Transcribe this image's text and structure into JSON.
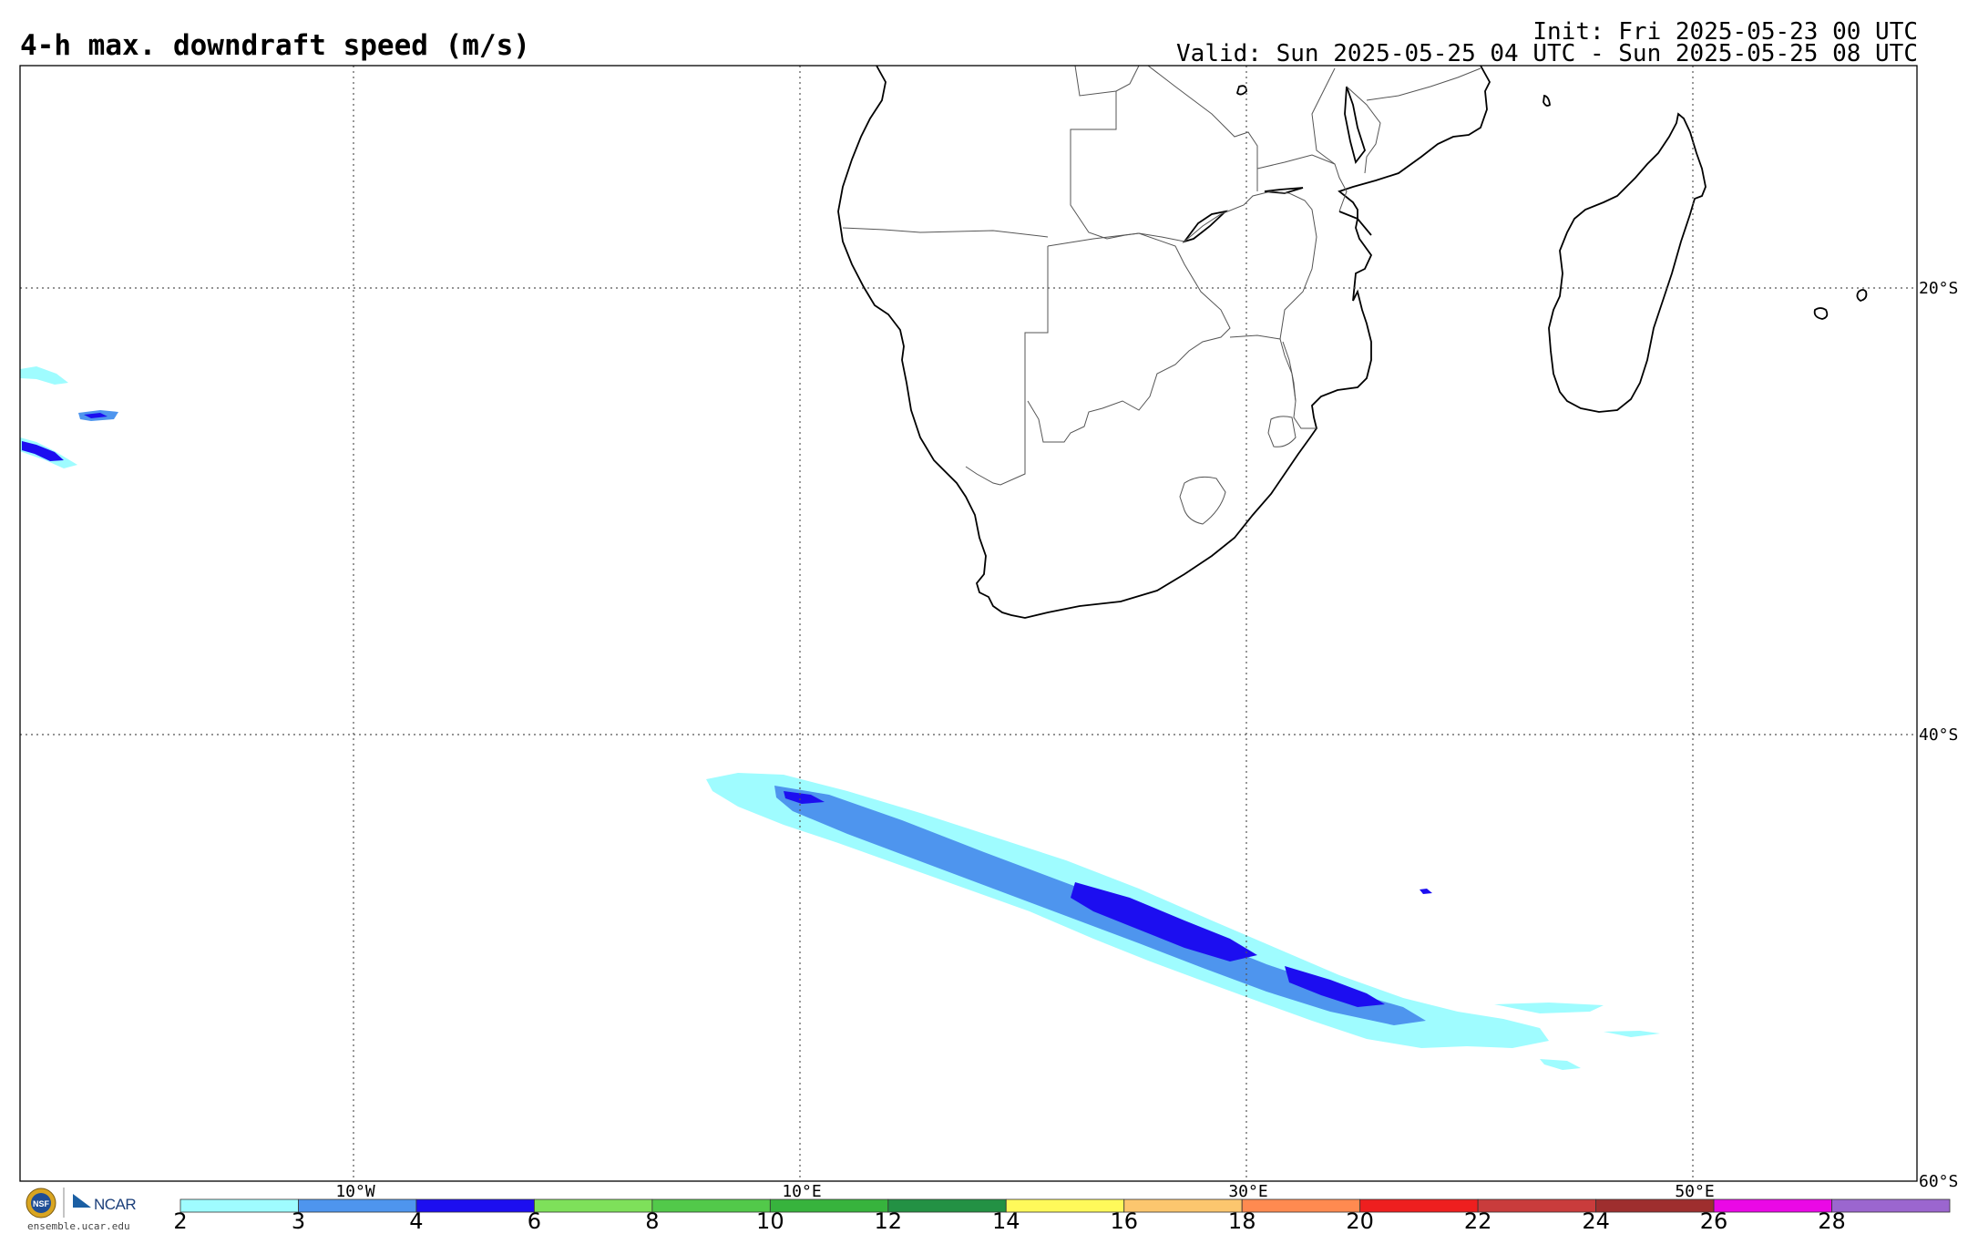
{
  "title": "4-h max. downdraft speed (m/s)",
  "init": "Init: Fri 2025-05-23 00 UTC",
  "valid": "Valid: Sun 2025-05-25 04 UTC - Sun 2025-05-25 08 UTC",
  "lat_labels": [
    "20°S",
    "40°S",
    "60°S"
  ],
  "lon_labels": [
    "10°W",
    "10°E",
    "30°E",
    "50°E"
  ],
  "colorbar": {
    "ticks": [
      "2",
      "3",
      "4",
      "6",
      "8",
      "10",
      "12",
      "14",
      "16",
      "18",
      "20",
      "22",
      "24",
      "26",
      "28"
    ],
    "colors": [
      "#9ffcff",
      "#4e95ee",
      "#1c0ef0",
      "#7ee05a",
      "#52c94a",
      "#37b33d",
      "#239144",
      "#fff95a",
      "#fcc66e",
      "#ff8a50",
      "#ee1f1f",
      "#c93c3c",
      "#9e2e2e",
      "#ea08e6",
      "#9b66cf"
    ]
  },
  "logo": {
    "ncar": "NCAR",
    "nsf": "NSF",
    "url": "ensemble.ucar.edu"
  }
}
